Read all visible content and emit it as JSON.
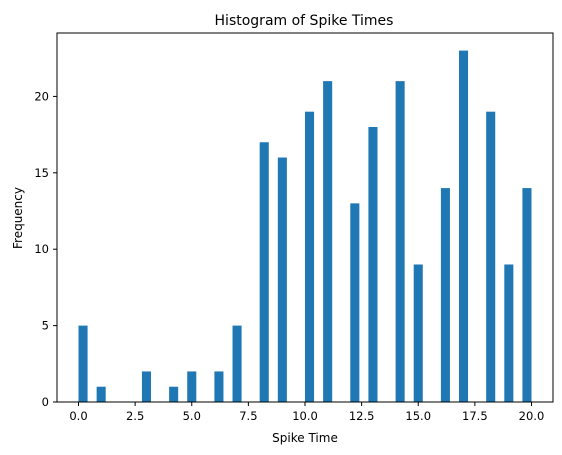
{
  "chart_data": {
    "type": "bar",
    "title": "Histogram of Spike Times",
    "xlabel": "Spike Time",
    "ylabel": "Frequency",
    "xlim": [
      -0.95,
      20.95
    ],
    "ylim": [
      0,
      24.15
    ],
    "x_ticks": [
      0.0,
      2.5,
      5.0,
      7.5,
      10.0,
      12.5,
      15.0,
      17.5,
      20.0
    ],
    "x_tick_labels": [
      "0.0",
      "2.5",
      "5.0",
      "7.5",
      "10.0",
      "12.5",
      "15.0",
      "17.5",
      "20.0"
    ],
    "y_ticks": [
      0,
      5,
      10,
      15,
      20
    ],
    "y_tick_labels": [
      "0",
      "5",
      "10",
      "15",
      "20"
    ],
    "bar_color": "#1f77b4",
    "bin_width": 0.4,
    "bins": [
      {
        "x": 0.2,
        "count": 5
      },
      {
        "x": 1.0,
        "count": 1
      },
      {
        "x": 3.0,
        "count": 2
      },
      {
        "x": 4.2,
        "count": 1
      },
      {
        "x": 5.0,
        "count": 2
      },
      {
        "x": 6.2,
        "count": 2
      },
      {
        "x": 7.0,
        "count": 5
      },
      {
        "x": 8.2,
        "count": 17
      },
      {
        "x": 9.0,
        "count": 16
      },
      {
        "x": 10.2,
        "count": 19
      },
      {
        "x": 11.0,
        "count": 21
      },
      {
        "x": 12.2,
        "count": 13
      },
      {
        "x": 13.0,
        "count": 18
      },
      {
        "x": 14.2,
        "count": 21
      },
      {
        "x": 15.0,
        "count": 9
      },
      {
        "x": 16.2,
        "count": 14
      },
      {
        "x": 17.0,
        "count": 23
      },
      {
        "x": 18.2,
        "count": 19
      },
      {
        "x": 19.0,
        "count": 9
      },
      {
        "x": 19.8,
        "count": 14
      }
    ]
  }
}
